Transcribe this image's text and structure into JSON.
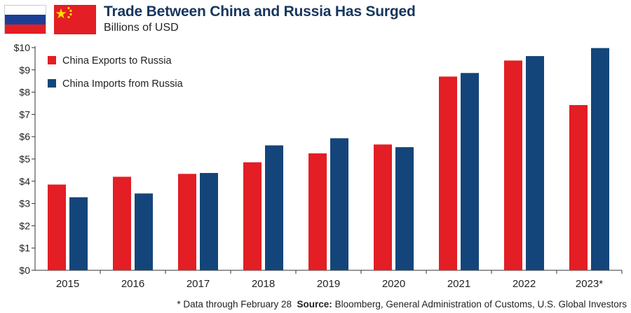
{
  "header": {
    "title": "Trade Between China and Russia Has Surged",
    "subtitle": "Billions of USD"
  },
  "colors": {
    "exports": "#e31e24",
    "imports": "#14457a",
    "title": "#17365d"
  },
  "chart_data": {
    "type": "bar",
    "categories": [
      "2015",
      "2016",
      "2017",
      "2018",
      "2019",
      "2020",
      "2021",
      "2022",
      "2023*"
    ],
    "series": [
      {
        "name": "China Exports to Russia",
        "values": [
          3.85,
          4.2,
          4.33,
          4.85,
          5.25,
          5.65,
          8.7,
          9.42,
          7.42
        ]
      },
      {
        "name": "China Imports from Russia",
        "values": [
          3.28,
          3.45,
          4.37,
          5.61,
          5.93,
          5.53,
          8.86,
          9.62,
          9.98
        ]
      }
    ],
    "y_tick_labels": [
      "$0",
      "$1",
      "$2",
      "$3",
      "$4",
      "$5",
      "$6",
      "$7",
      "$8",
      "$9",
      "$10"
    ],
    "ylim": [
      0,
      10
    ],
    "legend_position": "top-left",
    "grid": false
  },
  "footnote": {
    "note": "* Data through February 28",
    "source_label": "Source:",
    "source_text": "Bloomberg, General Administration of Customs, U.S. Global Investors"
  }
}
